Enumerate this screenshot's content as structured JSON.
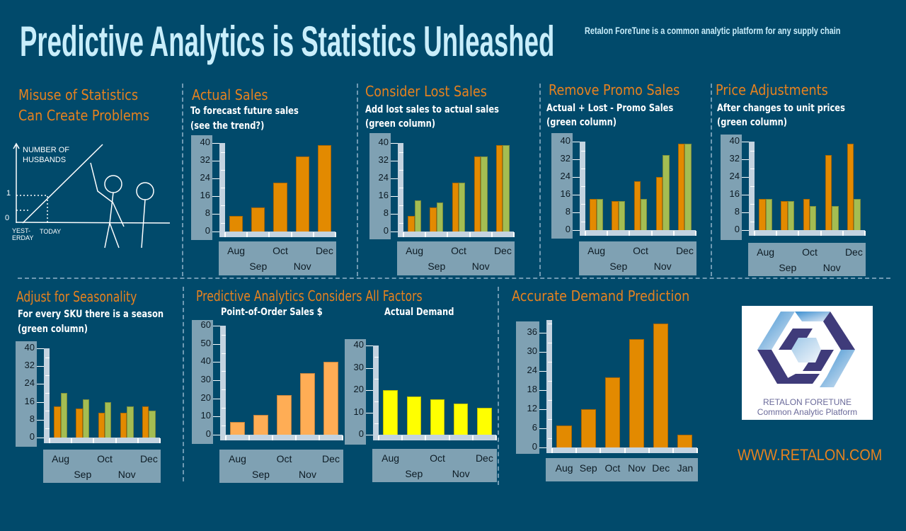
{
  "header": {
    "title": "Predictive Analytics is Statistics Unleashed",
    "tagline": "Retalon ForeTune is a common analytic platform for any supply chain"
  },
  "misuse": {
    "title_line1": "Misuse of Statistics",
    "title_line2": "Can Create Problems",
    "cartoon": {
      "ylabel1": "NUMBER OF",
      "ylabel2": "HUSBANDS",
      "tick1": "1",
      "tick0": "0",
      "x1a": "YEST-",
      "x1b": "ERDAY",
      "x2": "TODAY"
    }
  },
  "all_factors": {
    "title": "Predictive Analytics Considers All Factors"
  },
  "colors": {
    "orange": "#e38a00",
    "green": "#a4bd52",
    "light_orange": "#ffad55",
    "yellow": "#ffff00",
    "heading": "#e8821e"
  },
  "logo": {
    "line1": "RETALON FORETUNE",
    "line2": "Common Analytic Platform"
  },
  "website": "WWW.RETALON.COM",
  "chart_data": [
    {
      "type": "bar",
      "title": "Actual Sales",
      "subtitle1": "To forecast future sales",
      "subtitle2": "(see the trend?)",
      "categories": [
        "Aug",
        "Sep",
        "Oct",
        "Nov",
        "Dec"
      ],
      "ylim": [
        0,
        40
      ],
      "yticks": [
        0,
        8,
        16,
        24,
        32,
        40
      ],
      "series": [
        {
          "color": "#e38a00",
          "values": [
            7,
            11,
            22,
            34,
            39
          ]
        }
      ]
    },
    {
      "type": "bar",
      "title": "Consider Lost Sales",
      "subtitle1": "Add lost sales to actual sales",
      "subtitle2": "(green column)",
      "categories": [
        "Aug",
        "Sep",
        "Oct",
        "Nov",
        "Dec"
      ],
      "ylim": [
        0,
        40
      ],
      "yticks": [
        0,
        8,
        16,
        24,
        32,
        40
      ],
      "series": [
        {
          "color": "#e38a00",
          "values": [
            7,
            11,
            22,
            34,
            39
          ]
        },
        {
          "color": "#a4bd52",
          "values": [
            14,
            13,
            22,
            34,
            39
          ]
        }
      ]
    },
    {
      "type": "bar",
      "title": "Remove Promo Sales",
      "subtitle1": "Actual + Lost - Promo Sales",
      "subtitle2": "(green column)",
      "categories": [
        "Aug",
        "Sep",
        "Oct",
        "Nov",
        "Dec"
      ],
      "ylim": [
        0,
        40
      ],
      "yticks": [
        0,
        8,
        16,
        24,
        32,
        40
      ],
      "series": [
        {
          "color": "#e38a00",
          "values": [
            14,
            13,
            22,
            24,
            39
          ]
        },
        {
          "color": "#a4bd52",
          "values": [
            14,
            13,
            14,
            34,
            39
          ]
        }
      ]
    },
    {
      "type": "bar",
      "title": "Price Adjustments",
      "subtitle1": "After changes to unit prices",
      "subtitle2": "(green column)",
      "categories": [
        "Aug",
        "Sep",
        "Oct",
        "Nov",
        "Dec"
      ],
      "ylim": [
        0,
        40
      ],
      "yticks": [
        0,
        8,
        16,
        24,
        32,
        40
      ],
      "series": [
        {
          "color": "#e38a00",
          "values": [
            14,
            13,
            14,
            34,
            39
          ]
        },
        {
          "color": "#a4bd52",
          "values": [
            14,
            13,
            11,
            11,
            14
          ]
        }
      ]
    },
    {
      "type": "bar",
      "title": "Adjust for Seasonality",
      "subtitle1": "For every SKU there is a season",
      "subtitle2": "(green column)",
      "categories": [
        "Aug",
        "Sep",
        "Oct",
        "Nov",
        "Dec"
      ],
      "ylim": [
        0,
        40
      ],
      "yticks": [
        0,
        8,
        16,
        24,
        32,
        40
      ],
      "series": [
        {
          "color": "#e38a00",
          "values": [
            14,
            13,
            11,
            11,
            14
          ]
        },
        {
          "color": "#a4bd52",
          "values": [
            20,
            17,
            16,
            14,
            12
          ]
        }
      ]
    },
    {
      "type": "bar",
      "title": "Point-of-Order Sales $",
      "categories": [
        "Aug",
        "Sep",
        "Oct",
        "Nov",
        "Dec"
      ],
      "ylim": [
        0,
        60
      ],
      "yticks": [
        0,
        10,
        20,
        30,
        40,
        50,
        60
      ],
      "series": [
        {
          "color": "#ffad55",
          "values": [
            7,
            11,
            22,
            34,
            40
          ]
        }
      ]
    },
    {
      "type": "bar",
      "title": "Actual Demand",
      "categories": [
        "Aug",
        "Sep",
        "Oct",
        "Nov",
        "Dec"
      ],
      "ylim": [
        0,
        40
      ],
      "yticks": [
        0,
        10,
        20,
        30,
        40
      ],
      "series": [
        {
          "color": "#ffff00",
          "values": [
            20,
            17,
            16,
            14,
            12
          ]
        }
      ]
    },
    {
      "type": "bar",
      "title": "Accurate Demand Prediction",
      "categories": [
        "Aug",
        "Sep",
        "Oct",
        "Nov",
        "Dec",
        "Jan"
      ],
      "ylim": [
        0,
        40
      ],
      "yticks": [
        0,
        6,
        12,
        18,
        24,
        30,
        36
      ],
      "series": [
        {
          "color": "#e38a00",
          "values": [
            7,
            12,
            22,
            34,
            39,
            4
          ]
        }
      ]
    }
  ]
}
